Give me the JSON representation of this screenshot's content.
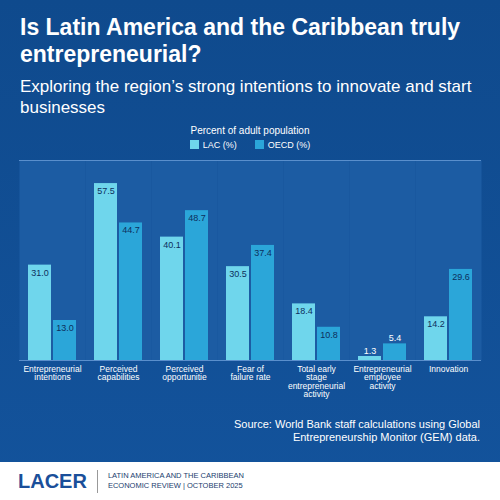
{
  "chart_data": {
    "type": "bar",
    "title": "Is Latin America and the Caribbean truly entrepreneurial?",
    "subtitle": "Exploring the region’s strong intentions to innovate and start businesses",
    "y_label": "Percent of adult population",
    "categories": [
      "Entrepreneurial intentions",
      "Perceived capabilities",
      "Perceived opportunitie",
      "Fear of failure rate",
      "Total early stage entrepreneurial activity",
      "Entrepreneurial employee activity",
      "Innovation"
    ],
    "series": [
      {
        "name": "LAC (%)",
        "color": "#6fd6ec",
        "values": [
          31.0,
          57.5,
          40.1,
          30.5,
          18.4,
          1.3,
          14.2
        ],
        "value_labels": [
          "31.0",
          "57.5",
          "40.1",
          "30.5",
          "18.4",
          "1.3",
          "14.2"
        ]
      },
      {
        "name": "OECD (%)",
        "color": "#2ba6d9",
        "values": [
          13.0,
          44.7,
          48.7,
          37.4,
          10.8,
          5.4,
          29.6
        ],
        "value_labels": [
          "13.0",
          "44.7",
          "48.7",
          "37.4",
          "10.8",
          "5.4",
          "29.6"
        ]
      }
    ],
    "ylim": [
      0,
      65
    ],
    "yticks": [],
    "grid": false,
    "legend": "top",
    "data_labels": true,
    "tick_labels": "x",
    "source": "Source: World Bank staff calculations using Global Entrepreneurship Monitor (GEM) data."
  },
  "footer": {
    "brand": "LACER",
    "publication": [
      "LATIN AMERICA AND THE CARIBBEAN",
      "ECONOMIC REVIEW | OCTOBER 2025"
    ]
  }
}
